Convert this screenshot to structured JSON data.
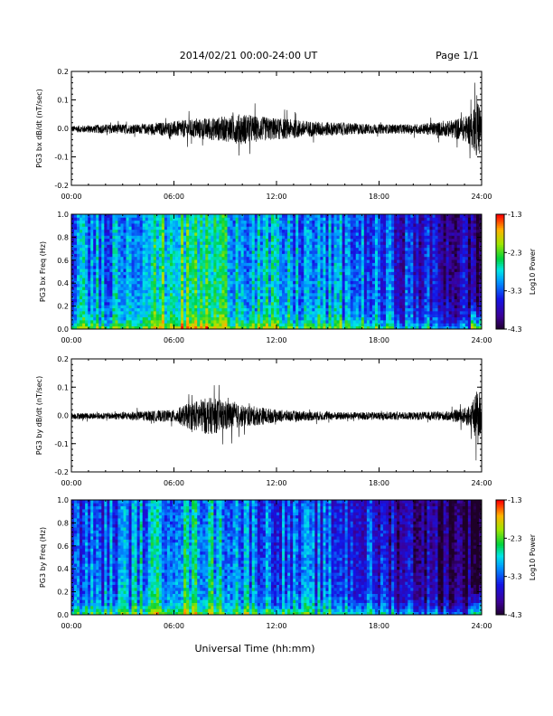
{
  "header": {
    "title": "2014/02/21  00:00-24:00 UT",
    "page": "Page 1/1"
  },
  "footer": {
    "xlabel": "Universal Time (hh:mm)"
  },
  "chart_data": [
    {
      "type": "line",
      "ylabel": "PG3 bx dB/dt (nT/sec)",
      "xlim": [
        "00:00",
        "24:00"
      ],
      "ylim": [
        -0.2,
        0.2
      ],
      "yticks": [
        "-0.2",
        "-0.1",
        "0.0",
        "0.1",
        "0.2"
      ],
      "xticks": [
        "00:00",
        "06:00",
        "12:00",
        "18:00",
        "24:00"
      ],
      "series": [
        {
          "x_hours": [
            0,
            2,
            4,
            6,
            8,
            9,
            10,
            11,
            12,
            13,
            14,
            16,
            18,
            20,
            22,
            23,
            23.5,
            23.8,
            24
          ],
          "amplitude": [
            0.02,
            0.03,
            0.03,
            0.05,
            0.07,
            0.08,
            0.1,
            0.08,
            0.07,
            0.06,
            0.05,
            0.04,
            0.03,
            0.03,
            0.05,
            0.08,
            0.12,
            0.2,
            0.1
          ]
        }
      ]
    },
    {
      "type": "heatmap",
      "ylabel": "PG3 bx Freq (Hz)",
      "xlim": [
        "00:00",
        "24:00"
      ],
      "ylim": [
        0.0,
        1.0
      ],
      "yticks": [
        "0.0",
        "0.2",
        "0.4",
        "0.6",
        "0.8",
        "1.0"
      ],
      "xticks": [
        "00:00",
        "06:00",
        "12:00",
        "18:00",
        "24:00"
      ],
      "colorbar": {
        "label": "Log10 Power",
        "min": -4.3,
        "max": -1.3,
        "ticks": [
          "-1.3",
          "-2.3",
          "-3.3",
          "-4.3"
        ]
      }
    },
    {
      "type": "line",
      "ylabel": "PG3 by dB/dt (nT/sec)",
      "xlim": [
        "00:00",
        "24:00"
      ],
      "ylim": [
        -0.2,
        0.2
      ],
      "yticks": [
        "-0.2",
        "-0.1",
        "0.0",
        "0.1",
        "0.2"
      ],
      "xticks": [
        "00:00",
        "06:00",
        "12:00",
        "18:00",
        "24:00"
      ],
      "series": [
        {
          "x_hours": [
            0,
            2,
            4,
            6,
            7,
            8,
            9,
            10,
            11,
            12,
            14,
            16,
            18,
            20,
            22,
            23,
            23.5,
            23.8,
            24
          ],
          "amplitude": [
            0.02,
            0.02,
            0.03,
            0.04,
            0.09,
            0.12,
            0.1,
            0.07,
            0.06,
            0.04,
            0.03,
            0.025,
            0.025,
            0.025,
            0.03,
            0.05,
            0.1,
            0.2,
            0.08
          ]
        }
      ]
    },
    {
      "type": "heatmap",
      "ylabel": "PG3 by Freq (Hz)",
      "xlim": [
        "00:00",
        "24:00"
      ],
      "ylim": [
        0.0,
        1.0
      ],
      "yticks": [
        "0.0",
        "0.2",
        "0.4",
        "0.6",
        "0.8",
        "1.0"
      ],
      "xticks": [
        "00:00",
        "06:00",
        "12:00",
        "18:00",
        "24:00"
      ],
      "colorbar": {
        "label": "Log10 Power",
        "min": -4.3,
        "max": -1.3,
        "ticks": [
          "-1.3",
          "-2.3",
          "-3.3",
          "-4.3"
        ]
      }
    }
  ]
}
